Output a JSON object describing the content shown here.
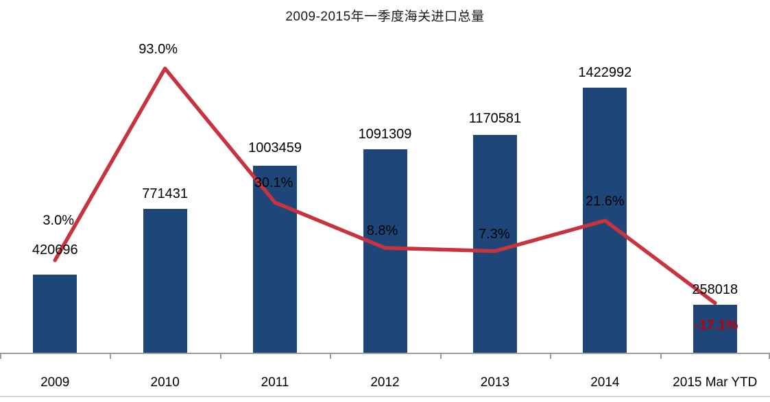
{
  "chart_data": {
    "type": "combo",
    "title": "2009-2015年一季度海关进口总量",
    "categories": [
      "2009",
      "2010",
      "2011",
      "2012",
      "2013",
      "2014",
      "2015 Mar YTD"
    ],
    "series": [
      {
        "name": "bar-series",
        "type": "bar",
        "values": [
          420696,
          771431,
          1003459,
          1091309,
          1170581,
          1422992,
          258018
        ],
        "labels": [
          "420696",
          "771431",
          "1003459",
          "1091309",
          "1170581",
          "1422992",
          "258018"
        ],
        "color": "#1F4679"
      },
      {
        "name": "line-series",
        "type": "line",
        "values": [
          3.0,
          93.0,
          30.1,
          8.8,
          7.3,
          21.6,
          -17.1
        ],
        "labels": [
          "3.0%",
          "93.0%",
          "30.1%",
          "8.8%",
          "7.3%",
          "21.6%",
          "-17.1%"
        ],
        "color": "#C7333E",
        "negative_label_color": "#C00000"
      }
    ],
    "xlabel": "",
    "ylabel": "",
    "legend": false,
    "gridlines": false,
    "axes_hidden": true,
    "label_text_color": "#000000",
    "axis_line_color": "#9c9c9c"
  }
}
